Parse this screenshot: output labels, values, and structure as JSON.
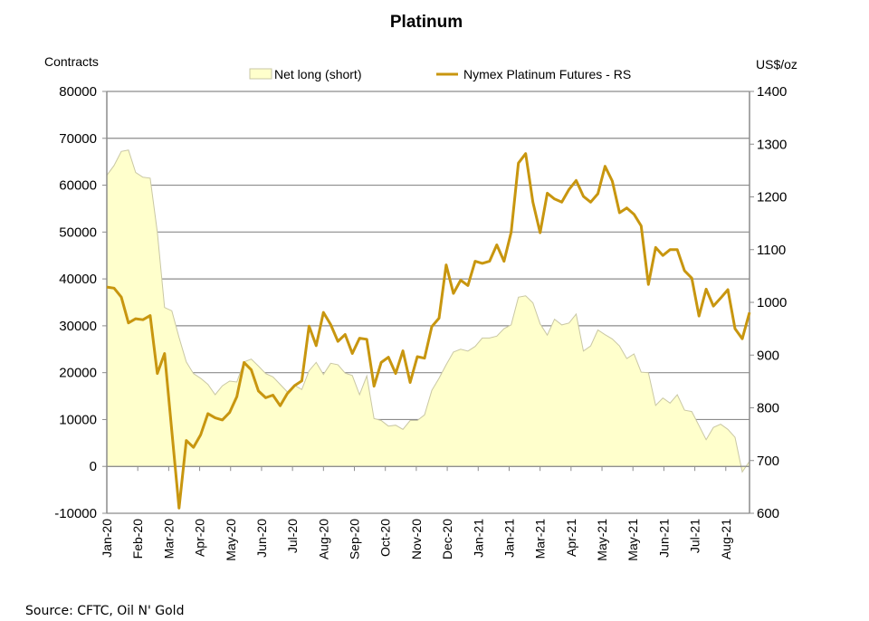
{
  "chart_data": {
    "type": "area+line",
    "title": "Platinum",
    "ylabel_left": "Contracts",
    "ylabel_right": "US$/oz",
    "ylim_left": [
      -10000,
      80000
    ],
    "ylim_right": [
      600,
      1400
    ],
    "yticks_left": [
      "-10000",
      "0",
      "10000",
      "20000",
      "30000",
      "40000",
      "50000",
      "60000",
      "70000",
      "80000"
    ],
    "yticks_right": [
      "600",
      "700",
      "800",
      "900",
      "1000",
      "1100",
      "1200",
      "1300",
      "1400"
    ],
    "xtick_labels": [
      "Jan-20",
      "Feb-20",
      "Mar-20",
      "Apr-20",
      "May-20",
      "Jun-20",
      "Jul-20",
      "Aug-20",
      "Sep-20",
      "Oct-20",
      "Nov-20",
      "Dec-20",
      "Jan-21",
      "Jan-21",
      "Mar-21",
      "Apr-21",
      "May-21",
      "May-21",
      "Jun-21",
      "Jul-21",
      "Aug-21"
    ],
    "grid": true,
    "legend_position": "top-center",
    "source": "Source: CFTC, Oil N' Gold",
    "colors": {
      "area_fill": "#FFFFCC",
      "area_stroke": "#C9C7A4",
      "line": "#C8960F",
      "grid": "#8C8C8C"
    },
    "x": [
      "2020-01-07",
      "2020-01-14",
      "2020-01-21",
      "2020-01-28",
      "2020-02-04",
      "2020-02-11",
      "2020-02-18",
      "2020-02-25",
      "2020-03-03",
      "2020-03-10",
      "2020-03-17",
      "2020-03-24",
      "2020-03-31",
      "2020-04-07",
      "2020-04-14",
      "2020-04-21",
      "2020-04-28",
      "2020-05-05",
      "2020-05-12",
      "2020-05-19",
      "2020-05-26",
      "2020-06-02",
      "2020-06-09",
      "2020-06-16",
      "2020-06-23",
      "2020-06-30",
      "2020-07-07",
      "2020-07-14",
      "2020-07-21",
      "2020-07-28",
      "2020-08-04",
      "2020-08-11",
      "2020-08-18",
      "2020-08-25",
      "2020-09-01",
      "2020-09-08",
      "2020-09-15",
      "2020-09-22",
      "2020-09-29",
      "2020-10-06",
      "2020-10-13",
      "2020-10-20",
      "2020-10-27",
      "2020-11-03",
      "2020-11-10",
      "2020-11-17",
      "2020-11-24",
      "2020-12-01",
      "2020-12-08",
      "2020-12-15",
      "2020-12-22",
      "2020-12-29",
      "2021-01-05",
      "2021-01-12",
      "2021-01-19",
      "2021-01-26",
      "2021-02-02",
      "2021-02-09",
      "2021-02-16",
      "2021-02-23",
      "2021-03-02",
      "2021-03-09",
      "2021-03-16",
      "2021-03-23",
      "2021-03-30",
      "2021-04-06",
      "2021-04-13",
      "2021-04-20",
      "2021-04-27",
      "2021-05-04",
      "2021-05-11",
      "2021-05-18",
      "2021-05-25",
      "2021-06-01",
      "2021-06-08",
      "2021-06-15",
      "2021-06-22",
      "2021-06-29",
      "2021-07-06",
      "2021-07-13",
      "2021-07-20",
      "2021-07-27",
      "2021-08-03",
      "2021-08-10",
      "2021-08-17",
      "2021-08-24",
      "2021-08-31",
      "2021-09-07",
      "2021-09-14",
      "2021-09-21"
    ],
    "series": [
      {
        "name": "Net long (short)",
        "type": "area",
        "axis": "left",
        "values": [
          62100,
          64200,
          67200,
          67500,
          62700,
          61700,
          61500,
          50000,
          33900,
          33200,
          27500,
          22300,
          19800,
          18800,
          17500,
          15300,
          17200,
          18200,
          18000,
          22300,
          22900,
          21400,
          19800,
          19100,
          17500,
          15900,
          17300,
          16400,
          20400,
          22200,
          19600,
          22000,
          21700,
          19900,
          19400,
          15300,
          19300,
          10200,
          9800,
          8600,
          8800,
          7900,
          9800,
          9800,
          11000,
          16200,
          18800,
          21700,
          24400,
          25000,
          24600,
          25600,
          27400,
          27400,
          27800,
          29400,
          30200,
          36100,
          36400,
          34900,
          30400,
          28000,
          31400,
          30200,
          30600,
          32500,
          24600,
          25700,
          29100,
          28100,
          27200,
          25700,
          23000,
          24000,
          20100,
          20000,
          13000,
          14600,
          13500,
          15300,
          12000,
          11700,
          8700,
          5700,
          8300,
          9000,
          7900,
          6200,
          -1200,
          1100
        ]
      },
      {
        "name": "Nymex Platinum Futures - RS",
        "type": "line",
        "axis": "right",
        "values": [
          1029,
          1027,
          1010,
          961,
          969,
          967,
          975,
          865,
          903,
          756,
          610,
          738,
          725,
          749,
          789,
          781,
          777,
          791,
          821,
          886,
          872,
          832,
          819,
          824,
          804,
          827,
          842,
          851,
          955,
          918,
          981,
          958,
          926,
          939,
          903,
          932,
          930,
          841,
          886,
          896,
          865,
          908,
          848,
          897,
          894,
          954,
          970,
          1071,
          1017,
          1042,
          1032,
          1078,
          1074,
          1078,
          1109,
          1078,
          1133,
          1264,
          1282,
          1190,
          1132,
          1207,
          1196,
          1190,
          1214,
          1231,
          1201,
          1190,
          1206,
          1258,
          1230,
          1170,
          1179,
          1167,
          1145,
          1034,
          1104,
          1089,
          1100,
          1100,
          1060,
          1046,
          974,
          1025,
          993,
          1008,
          1024,
          950,
          931,
          981
        ]
      }
    ]
  }
}
